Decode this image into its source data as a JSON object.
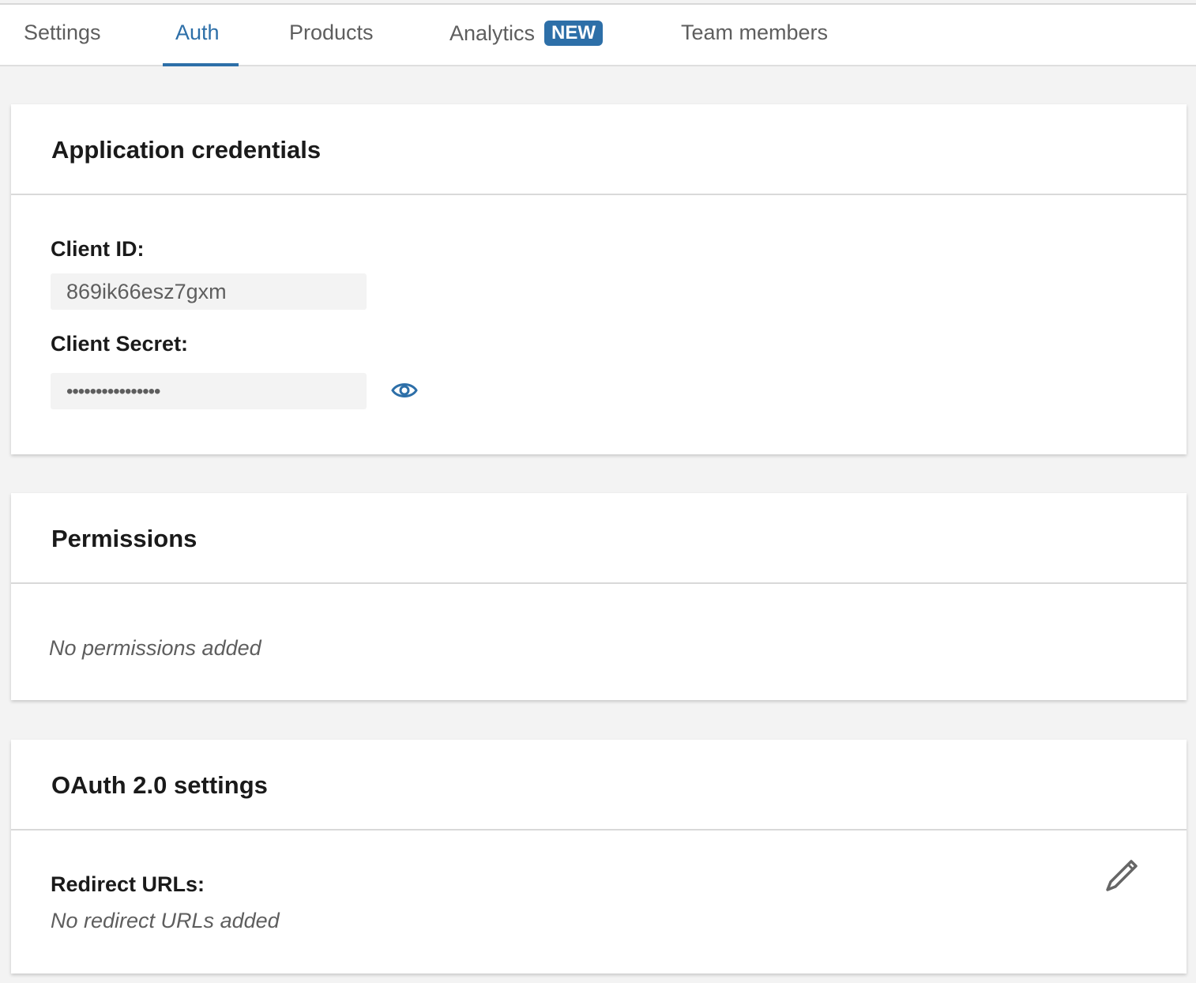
{
  "tabs": [
    {
      "label": "Settings"
    },
    {
      "label": "Auth",
      "active": true
    },
    {
      "label": "Products"
    },
    {
      "label": "Analytics",
      "badge": "NEW"
    },
    {
      "label": "Team members"
    }
  ],
  "credentials": {
    "title": "Application credentials",
    "client_id_label": "Client ID:",
    "client_id": "869ik66esz7gxm",
    "client_secret_label": "Client Secret:",
    "client_secret_masked": "••••••••••••••••",
    "reveal_icon": "eye-icon"
  },
  "permissions": {
    "title": "Permissions",
    "empty": "No permissions added"
  },
  "oauth": {
    "title": "OAuth 2.0 settings",
    "redirect_label": "Redirect URLs:",
    "redirect_empty": "No redirect URLs added",
    "edit_icon": "pencil-icon"
  },
  "colors": {
    "accent": "#2d6fa8",
    "background": "#f3f3f3"
  }
}
